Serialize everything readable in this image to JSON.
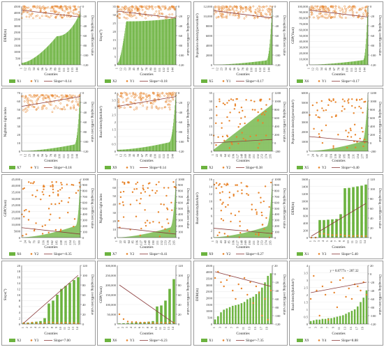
{
  "chart_data": [
    {
      "type": "bar",
      "panel": 1,
      "bar_label": "X1",
      "pt_label": "Y1",
      "slope_text": "Slope=-0.14",
      "ylabel_left": "DEM(m)",
      "ylabel_right": "Decoupling coefficient value",
      "xlabel": "Counties",
      "ylim": [
        0,
        4500
      ],
      "y2lim": [
        -120,
        0
      ],
      "yticks": [
        "0",
        "500",
        "1000",
        "1500",
        "2000",
        "2500",
        "3000",
        "3500",
        "4000",
        "4500"
      ],
      "y2ticks": [
        "-120",
        "-100",
        "-80",
        "-60",
        "-40",
        "-20",
        "0"
      ],
      "xticks": [
        "1",
        "12",
        "23",
        "34",
        "45",
        "56",
        "67",
        "78",
        "89",
        "100",
        "111",
        "122",
        "133",
        "144"
      ],
      "n": 150,
      "style": "curve",
      "bmin": 150,
      "bmax": 2200,
      "t1": 0.6,
      "spike": 4000,
      "pt_lo": -25,
      "pt_hi": 0,
      "pt_count": 150,
      "pt_fill": false,
      "trend": [
        -8,
        -22
      ]
    },
    {
      "type": "bar",
      "panel": 2,
      "bar_label": "X2",
      "pt_label": "Y1",
      "slope_text": "Slope=-0.18",
      "ylabel_left": "Slope(°)",
      "ylabel_right": "Decoupling coefficient value",
      "xlabel": "Counties",
      "ylim": [
        0,
        35
      ],
      "y2lim": [
        -120,
        0
      ],
      "yticks": [
        "0",
        "5",
        "10",
        "15",
        "20",
        "25",
        "30",
        "35"
      ],
      "y2ticks": [
        "-120",
        "-100",
        "-80",
        "-60",
        "-40",
        "-20",
        "0"
      ],
      "xticks": [
        "1",
        "12",
        "23",
        "34",
        "45",
        "56",
        "67",
        "78",
        "89",
        "100",
        "111",
        "122",
        "133",
        "144"
      ],
      "n": 150,
      "style": "curve",
      "bmin": 1,
      "bmax": 26,
      "t1": 0.15,
      "spike": 28,
      "pt_lo": -25,
      "pt_hi": 0,
      "pt_count": 150,
      "pt_fill": false,
      "trend": [
        -10,
        -24
      ]
    },
    {
      "type": "bar",
      "panel": 3,
      "bar_label": "X5",
      "pt_label": "Y1",
      "slope_text": "Slope=-0.17",
      "ylabel_left": "Population density(person/km²)",
      "ylabel_right": "Decoupling coefficient value",
      "xlabel": "Counties",
      "ylim": [
        0,
        12000
      ],
      "y2lim": [
        -120,
        0
      ],
      "yticks": [
        "0",
        "2000",
        "4000",
        "6000",
        "8000",
        "10,000",
        "12,000"
      ],
      "y2ticks": [
        "-120",
        "-100",
        "-80",
        "-60",
        "-40",
        "-20",
        "0"
      ],
      "xticks": [
        "1",
        "12",
        "23",
        "34",
        "45",
        "56",
        "67",
        "78",
        "89",
        "100",
        "111",
        "122",
        "133",
        "144"
      ],
      "n": 150,
      "style": "curve",
      "bmin": 20,
      "bmax": 900,
      "t1": 0.9,
      "spike": 11500,
      "pt_lo": -25,
      "pt_hi": 0,
      "pt_count": 150,
      "pt_fill": false,
      "trend": [
        -9,
        -24
      ]
    },
    {
      "type": "bar",
      "panel": 4,
      "bar_label": "X6",
      "pt_label": "Y1",
      "slope_text": "Slope=-0.17",
      "ylabel_left": "GDP(Yuan)",
      "ylabel_right": "Decoupling coefficient value",
      "xlabel": "Counties",
      "ylim": [
        0,
        100000
      ],
      "y2lim": [
        -120,
        0
      ],
      "yticks": [
        "0",
        "10,000",
        "20,000",
        "30,000",
        "40,000",
        "50,000",
        "60,000",
        "70,000",
        "80,000",
        "90,000",
        "100,000"
      ],
      "y2ticks": [
        "-120",
        "-100",
        "-80",
        "-60",
        "-40",
        "-20",
        "0"
      ],
      "xticks": [
        "1",
        "12",
        "23",
        "34",
        "45",
        "56",
        "67",
        "78",
        "89",
        "100",
        "111",
        "122",
        "133",
        "144"
      ],
      "n": 150,
      "style": "curve",
      "bmin": 200,
      "bmax": 8000,
      "t1": 0.92,
      "spike": 98000,
      "pt_lo": -25,
      "pt_hi": 0,
      "pt_count": 150,
      "pt_fill": false,
      "trend": [
        -8,
        -22
      ]
    },
    {
      "type": "bar",
      "panel": 5,
      "bar_label": "X7",
      "pt_label": "Y1",
      "slope_text": "Slope=-0.18",
      "ylabel_left": "Nighttime light index",
      "ylabel_right": "Decoupling coefficient value",
      "xlabel": "Counties",
      "ylim": [
        0,
        70
      ],
      "y2lim": [
        -120,
        0
      ],
      "yticks": [
        "0",
        "10",
        "20",
        "30",
        "40",
        "50",
        "60",
        "70"
      ],
      "y2ticks": [
        "-120",
        "-100",
        "-80",
        "-60",
        "-40",
        "-20",
        "0"
      ],
      "xticks": [
        "1",
        "12",
        "23",
        "34",
        "45",
        "56",
        "67",
        "78",
        "89",
        "100",
        "111",
        "122",
        "133",
        "144"
      ],
      "n": 150,
      "style": "curve",
      "bmin": 0.2,
      "bmax": 8,
      "t1": 0.9,
      "spike": 68,
      "pt_lo": -40,
      "pt_hi": -5,
      "pt_count": 150,
      "pt_fill": false,
      "trend": [
        -28,
        -8
      ]
    },
    {
      "type": "bar",
      "panel": 6,
      "bar_label": "X9",
      "pt_label": "Y1",
      "slope_text": "Slope=0.14",
      "ylabel_left": "Road density(km/km²)",
      "ylabel_right": "Decoupling coefficient value",
      "xlabel": "Counties",
      "ylim": [
        0,
        4
      ],
      "y2lim": [
        -120,
        0
      ],
      "yticks": [
        "0",
        "0.5",
        "1",
        "1.5",
        "2",
        "2.5",
        "3",
        "3.5",
        "4"
      ],
      "y2ticks": [
        "-120",
        "-100",
        "-80",
        "-60",
        "-40",
        "-20",
        "0"
      ],
      "xticks": [
        "1",
        "12",
        "23",
        "34",
        "45",
        "56",
        "67",
        "78",
        "89",
        "100",
        "111",
        "122",
        "133",
        "144"
      ],
      "n": 150,
      "style": "curve",
      "bmin": 0.1,
      "bmax": 0.6,
      "t1": 0.88,
      "spike": 3.9,
      "pt_lo": -35,
      "pt_hi": 0,
      "pt_count": 150,
      "pt_fill": false,
      "trend": [
        -28,
        -8
      ]
    },
    {
      "type": "bar",
      "panel": 7,
      "bar_label": "X2",
      "pt_label": "Y2",
      "slope_text": "Slope=0.38",
      "ylabel_left": "",
      "ylabel_right": "Decoupling coefficient value",
      "xlabel": "Counties",
      "ylim": [
        0,
        35
      ],
      "y2lim": [
        -200,
        1200
      ],
      "yticks": [
        "0",
        "5",
        "10",
        "15",
        "20",
        "25",
        "30",
        "35"
      ],
      "y2ticks": [
        "-200",
        "0",
        "200",
        "400",
        "600",
        "800",
        "1000",
        "1200"
      ],
      "xticks": [
        "1",
        "22",
        "43",
        "64",
        "85",
        "106",
        "127",
        "148",
        "169",
        "190",
        "211",
        "232",
        "253",
        "274",
        "295"
      ],
      "n": 300,
      "style": "linear",
      "bmin": 1,
      "bmax": 28,
      "t1": 0,
      "spike": 28,
      "pt_lo": -150,
      "pt_hi": 1050,
      "pt_count": 70,
      "pt_fill": true,
      "trend": [
        0,
        80
      ]
    },
    {
      "type": "bar",
      "panel": 8,
      "bar_label": "X5",
      "pt_label": "Y2",
      "slope_text": "Slope=-0.40",
      "ylabel_left": "Population density(person/km²)",
      "ylabel_right": "Decoupling coefficient value",
      "xlabel": "Counties",
      "ylim": [
        0,
        6000
      ],
      "y2lim": [
        -200,
        1200
      ],
      "yticks": [
        "0",
        "1000",
        "2000",
        "3000",
        "4000",
        "5000",
        "6000"
      ],
      "y2ticks": [
        "-200",
        "0",
        "200",
        "400",
        "600",
        "800",
        "1000",
        "1200"
      ],
      "xticks": [
        "1",
        "24",
        "47",
        "70",
        "93",
        "116",
        "139",
        "162",
        "185",
        "208",
        "231",
        "254",
        "277",
        "300"
      ],
      "n": 300,
      "style": "curve",
      "bmin": 20,
      "bmax": 1000,
      "t1": 0.9,
      "spike": 5800,
      "pt_lo": -150,
      "pt_hi": 1050,
      "pt_count": 70,
      "pt_fill": true,
      "trend": [
        150,
        20
      ]
    },
    {
      "type": "bar",
      "panel": 9,
      "bar_label": "X6",
      "pt_label": "Y2",
      "slope_text": "Slope=-0.35",
      "ylabel_left": "GDP(Yuan)",
      "ylabel_right": "Decoupling coefficient value",
      "xlabel": "Counties",
      "ylim": [
        0,
        45000
      ],
      "y2lim": [
        0,
        1000
      ],
      "yticks": [
        "0",
        "5000",
        "10,000",
        "15,000",
        "20,000",
        "25,000",
        "30,000",
        "35,000",
        "40,000",
        "45,000"
      ],
      "y2ticks": [
        "0",
        "100",
        "200",
        "300",
        "400",
        "500",
        "600",
        "700",
        "800",
        "900",
        "1000"
      ],
      "xticks": [
        "1",
        "24",
        "47",
        "70",
        "93",
        "116",
        "139",
        "162",
        "185",
        "208",
        "231",
        "254",
        "277",
        "300"
      ],
      "n": 300,
      "style": "curve",
      "bmin": 200,
      "bmax": 9000,
      "t1": 0.92,
      "spike": 43000,
      "pt_lo": 0,
      "pt_hi": 950,
      "pt_count": 70,
      "pt_fill": true,
      "trend": [
        170,
        60
      ]
    },
    {
      "type": "bar",
      "panel": 10,
      "bar_label": "X7",
      "pt_label": "Y2",
      "slope_text": "Slope=-0.41",
      "ylabel_left": "Nighttime light index",
      "ylabel_right": "Decoupling coefficient value",
      "xlabel": "Counties",
      "ylim": [
        0,
        70
      ],
      "y2lim": [
        0,
        1000
      ],
      "yticks": [
        "0",
        "10",
        "20",
        "30",
        "40",
        "50",
        "60",
        "70"
      ],
      "y2ticks": [
        "0",
        "100",
        "200",
        "300",
        "400",
        "500",
        "600",
        "700",
        "800",
        "900",
        "1000"
      ],
      "xticks": [
        "1",
        "22",
        "43",
        "64",
        "85",
        "106",
        "127",
        "148",
        "169",
        "190",
        "211",
        "232",
        "253",
        "274",
        "295"
      ],
      "n": 300,
      "style": "curve",
      "bmin": 0.2,
      "bmax": 12,
      "t1": 0.9,
      "spike": 66,
      "pt_lo": 0,
      "pt_hi": 950,
      "pt_count": 70,
      "pt_fill": true,
      "trend": [
        170,
        60
      ]
    },
    {
      "type": "bar",
      "panel": 11,
      "bar_label": "X9",
      "pt_label": "Y2",
      "slope_text": "Slope=-0.27",
      "ylabel_left": "Road density(km/km²)",
      "ylabel_right": "Decoupling coefficient value",
      "xlabel": "Counties",
      "ylim": [
        0,
        16
      ],
      "y2lim": [
        0,
        1000
      ],
      "yticks": [
        "0",
        "2",
        "4",
        "6",
        "8",
        "10",
        "12",
        "14",
        "16"
      ],
      "y2ticks": [
        "0",
        "100",
        "200",
        "300",
        "400",
        "500",
        "600",
        "700",
        "800",
        "900",
        "1000"
      ],
      "xticks": [
        "1",
        "22",
        "43",
        "64",
        "85",
        "106",
        "127",
        "148",
        "169",
        "190",
        "211",
        "232",
        "253",
        "274",
        "295"
      ],
      "n": 300,
      "style": "curve",
      "bmin": 0.1,
      "bmax": 3,
      "t1": 0.9,
      "spike": 15,
      "pt_lo": 0,
      "pt_hi": 950,
      "pt_count": 70,
      "pt_fill": true,
      "trend": [
        160,
        70
      ]
    },
    {
      "type": "bar",
      "panel": 12,
      "bar_label": "X1",
      "pt_label": "Y3",
      "slope_text": "Slope=5.40",
      "ylabel_left": "DEM(m)",
      "ylabel_right": "Decoupling coefficient value",
      "xlabel": "Counties",
      "ylim": [
        0,
        1600
      ],
      "y2lim": [
        0,
        120
      ],
      "yticks": [
        "0",
        "200",
        "400",
        "600",
        "800",
        "1000",
        "1200",
        "1400",
        "1600"
      ],
      "y2ticks": [
        "0",
        "20",
        "40",
        "60",
        "80",
        "100",
        "120"
      ],
      "xticks": [
        "1",
        "2",
        "3",
        "4",
        "5",
        "6",
        "7",
        "8",
        "9",
        "10",
        "11",
        "12",
        "13",
        "14"
      ],
      "n": 14,
      "style": "explicit",
      "bars": [
        5,
        10,
        480,
        480,
        490,
        500,
        510,
        640,
        1350,
        1360,
        1380,
        1400,
        1420,
        1450
      ],
      "pts": [
        0,
        0,
        8,
        8,
        6,
        5,
        5,
        6,
        4,
        4,
        3,
        4,
        3,
        3
      ],
      "pt_fill": true,
      "trend": [
        3,
        70
      ]
    },
    {
      "type": "bar",
      "panel": 13,
      "bar_label": "X2",
      "pt_label": "Y3",
      "slope_text": "Slope=7.00",
      "ylabel_left": "Slope(°)",
      "ylabel_right": "Decoupling coefficient value",
      "xlabel": "Counties",
      "ylim": [
        0,
        20
      ],
      "y2lim": [
        0,
        120
      ],
      "yticks": [
        "0",
        "2",
        "4",
        "6",
        "8",
        "10",
        "12",
        "14",
        "16",
        "18",
        "20"
      ],
      "y2ticks": [
        "0",
        "20",
        "40",
        "60",
        "80",
        "100",
        "120"
      ],
      "xticks": [
        "1",
        "2",
        "3",
        "4",
        "5",
        "6",
        "7",
        "8",
        "9",
        "10",
        "11",
        "12",
        "13",
        "14"
      ],
      "n": 14,
      "style": "explicit",
      "bars": [
        0.4,
        0.5,
        0.6,
        0.8,
        1,
        2,
        7,
        8,
        10,
        12,
        13,
        14,
        15,
        16
      ],
      "pts": [
        2,
        1,
        3,
        2,
        1,
        2,
        4,
        3,
        2,
        2,
        3,
        2,
        2,
        1
      ],
      "pt_fill": true,
      "trend": [
        2,
        100
      ]
    },
    {
      "type": "bar",
      "panel": 14,
      "bar_label": "X6",
      "pt_label": "Y3",
      "slope_text": "Slope=-6.23",
      "ylabel_left": "GDP(Yuan)",
      "ylabel_right": "Decoupling coefficient value",
      "xlabel": "Counties",
      "ylim": [
        0,
        300000
      ],
      "y2lim": [
        0,
        120
      ],
      "yticks": [
        "0",
        "50,000",
        "100,000",
        "150,000",
        "200,000",
        "250,000",
        "300,000"
      ],
      "y2ticks": [
        "0",
        "20",
        "40",
        "60",
        "80",
        "100",
        "120"
      ],
      "xticks": [
        "1",
        "2",
        "3",
        "4",
        "5",
        "6",
        "7",
        "8",
        "9",
        "10",
        "11",
        "12",
        "13",
        "14"
      ],
      "n": 14,
      "style": "explicit",
      "bars": [
        3000,
        4000,
        5000,
        6000,
        8000,
        9000,
        10000,
        12000,
        15000,
        90000,
        95000,
        120000,
        180000,
        230000
      ],
      "pts": [
        20,
        10,
        5,
        4,
        4,
        3,
        3,
        3,
        2,
        2,
        3,
        2,
        3,
        3
      ],
      "pt_fill": true,
      "trend": [
        80,
        2
      ]
    },
    {
      "type": "bar",
      "panel": 15,
      "bar_label": "X1",
      "pt_label": "Y4",
      "slope_text": "Slope=-7.35",
      "ylabel_left": "DEM(m)",
      "ylabel_right": "Decoupling coefficient value",
      "xlabel": "Counties",
      "ylim": [
        0,
        4500
      ],
      "y2lim": [
        -120,
        20
      ],
      "yticks": [
        "0",
        "500",
        "1000",
        "1500",
        "2000",
        "2500",
        "3000",
        "3500",
        "4000",
        "4500"
      ],
      "y2ticks": [
        "-120",
        "-100",
        "-80",
        "-60",
        "-40",
        "-20",
        "0",
        "20"
      ],
      "xticks": [
        "1",
        "3",
        "5",
        "7",
        "9",
        "11",
        "13",
        "15",
        "17",
        "19"
      ],
      "n": 20,
      "style": "explicit",
      "bars": [
        350,
        600,
        900,
        1100,
        1200,
        1300,
        1400,
        1450,
        1500,
        1600,
        1700,
        1900,
        2000,
        2100,
        2300,
        2500,
        2800,
        3200,
        3700,
        3900
      ],
      "pts": [
        -10,
        5,
        -20,
        -30,
        -15,
        -5,
        -40,
        -60,
        -25,
        -35,
        -10,
        -50,
        -20,
        -70,
        -30,
        -45,
        -100,
        -60,
        -110,
        -40
      ],
      "pt_fill": true,
      "trend": [
        5,
        -30
      ]
    },
    {
      "type": "bar",
      "panel": 16,
      "bar_label": "X9",
      "pt_label": "Y4",
      "slope_text": "Slope=8.88",
      "ylabel_left": "Road density(km/km²)",
      "ylabel_right": "Decoupling coefficient value",
      "xlabel": "Counties",
      "ylim": [
        0,
        4
      ],
      "y2lim": [
        -120,
        20
      ],
      "yticks": [
        "0",
        "0.5",
        "1",
        "1.5",
        "2",
        "2.5",
        "3",
        "3.5",
        "4"
      ],
      "y2ticks": [
        "-120",
        "-100",
        "-80",
        "-60",
        "-40",
        "-20",
        "0",
        "20"
      ],
      "xticks": [
        "1",
        "3",
        "5",
        "7",
        "9",
        "11",
        "13",
        "15",
        "17",
        "19"
      ],
      "n": 20,
      "style": "explicit",
      "bars": [
        0.2,
        0.25,
        0.3,
        0.3,
        0.35,
        0.35,
        0.4,
        0.4,
        0.45,
        0.5,
        0.55,
        0.6,
        0.7,
        0.8,
        0.9,
        1,
        1.2,
        1.5,
        1.8,
        2.3
      ],
      "pts": [
        -60,
        -5,
        -40,
        -100,
        -30,
        -50,
        -110,
        -20,
        -45,
        -80,
        -15,
        -10,
        -55,
        -35,
        -60,
        -25,
        -30,
        -40,
        -20,
        -50
      ],
      "pt_fill": true,
      "trend": [
        -45,
        -20
      ],
      "equation": "y = 8.8777x – 287.32"
    }
  ]
}
